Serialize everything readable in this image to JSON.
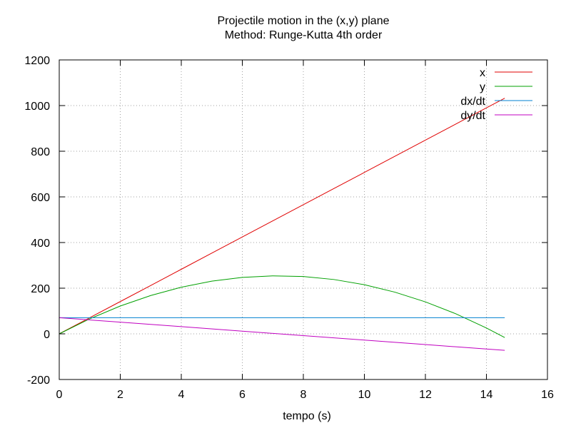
{
  "chart_data": {
    "type": "line",
    "title": "Projectile motion in the (x,y) plane",
    "subtitle": "Method: Runge-Kutta 4th order",
    "xlabel": "tempo (s)",
    "ylabel": "",
    "xlim": [
      0,
      16
    ],
    "ylim": [
      -200,
      1200
    ],
    "xticks": [
      0,
      2,
      4,
      6,
      8,
      10,
      12,
      14,
      16
    ],
    "yticks": [
      -200,
      0,
      200,
      400,
      600,
      800,
      1000,
      1200
    ],
    "grid": true,
    "legend_position": "top-right",
    "series": [
      {
        "name": "x",
        "color": "#e00000",
        "points": [
          [
            0,
            0
          ],
          [
            1,
            70.7
          ],
          [
            2,
            141.4
          ],
          [
            3,
            212.1
          ],
          [
            4,
            282.8
          ],
          [
            5,
            353.6
          ],
          [
            6,
            424.3
          ],
          [
            7,
            495.0
          ],
          [
            8,
            565.7
          ],
          [
            9,
            636.4
          ],
          [
            10,
            707.1
          ],
          [
            11,
            777.8
          ],
          [
            12,
            848.5
          ],
          [
            13,
            919.2
          ],
          [
            14,
            989.9
          ],
          [
            14.6,
            1032.3
          ]
        ]
      },
      {
        "name": "y",
        "color": "#00a000",
        "points": [
          [
            0,
            0
          ],
          [
            1,
            65.8
          ],
          [
            2,
            121.8
          ],
          [
            3,
            168.0
          ],
          [
            4,
            204.3
          ],
          [
            5,
            230.7
          ],
          [
            6,
            247.4
          ],
          [
            7,
            254.1
          ],
          [
            8,
            251.0
          ],
          [
            9,
            238.1
          ],
          [
            10,
            215.3
          ],
          [
            11,
            182.6
          ],
          [
            12,
            140.1
          ],
          [
            13,
            87.8
          ],
          [
            14,
            25.6
          ],
          [
            14.6,
            -16.3
          ]
        ]
      },
      {
        "name": "dx/dt",
        "color": "#0080d0",
        "points": [
          [
            0,
            70.7
          ],
          [
            14.6,
            70.7
          ]
        ]
      },
      {
        "name": "dy/dt",
        "color": "#c000c0",
        "points": [
          [
            0,
            70.7
          ],
          [
            2,
            51.1
          ],
          [
            4,
            31.5
          ],
          [
            6,
            11.9
          ],
          [
            7.21,
            0
          ],
          [
            8,
            -7.7
          ],
          [
            10,
            -27.3
          ],
          [
            12,
            -46.9
          ],
          [
            14,
            -66.6
          ],
          [
            14.6,
            -72.4
          ]
        ]
      }
    ]
  }
}
